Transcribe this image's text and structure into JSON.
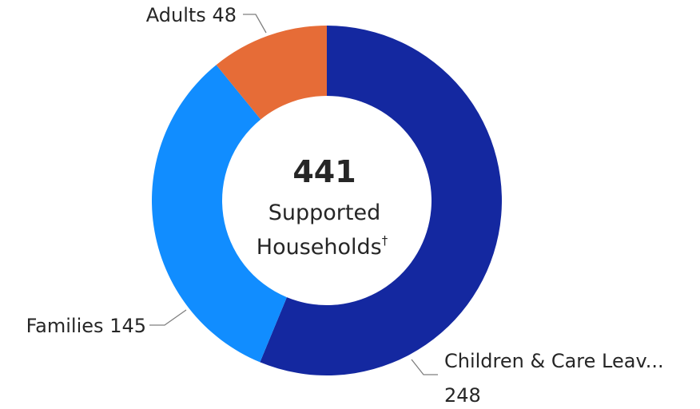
{
  "chart_data": {
    "type": "donut",
    "title": "",
    "series": [
      {
        "name": "Children & Care Leav...",
        "value": 248,
        "color": "#1428a0"
      },
      {
        "name": "Families",
        "value": 145,
        "color": "#118dff"
      },
      {
        "name": "Adults",
        "value": 48,
        "color": "#e66c37"
      }
    ],
    "center": {
      "total": "441",
      "line1": "Supported",
      "line2": "Households",
      "sup": "†"
    },
    "data_labels": {
      "adults": {
        "name": "Adults",
        "value": "48"
      },
      "families": {
        "name": "Families",
        "value": "145"
      },
      "children": {
        "name": "Children & Care Leav...",
        "value": "248"
      }
    }
  }
}
